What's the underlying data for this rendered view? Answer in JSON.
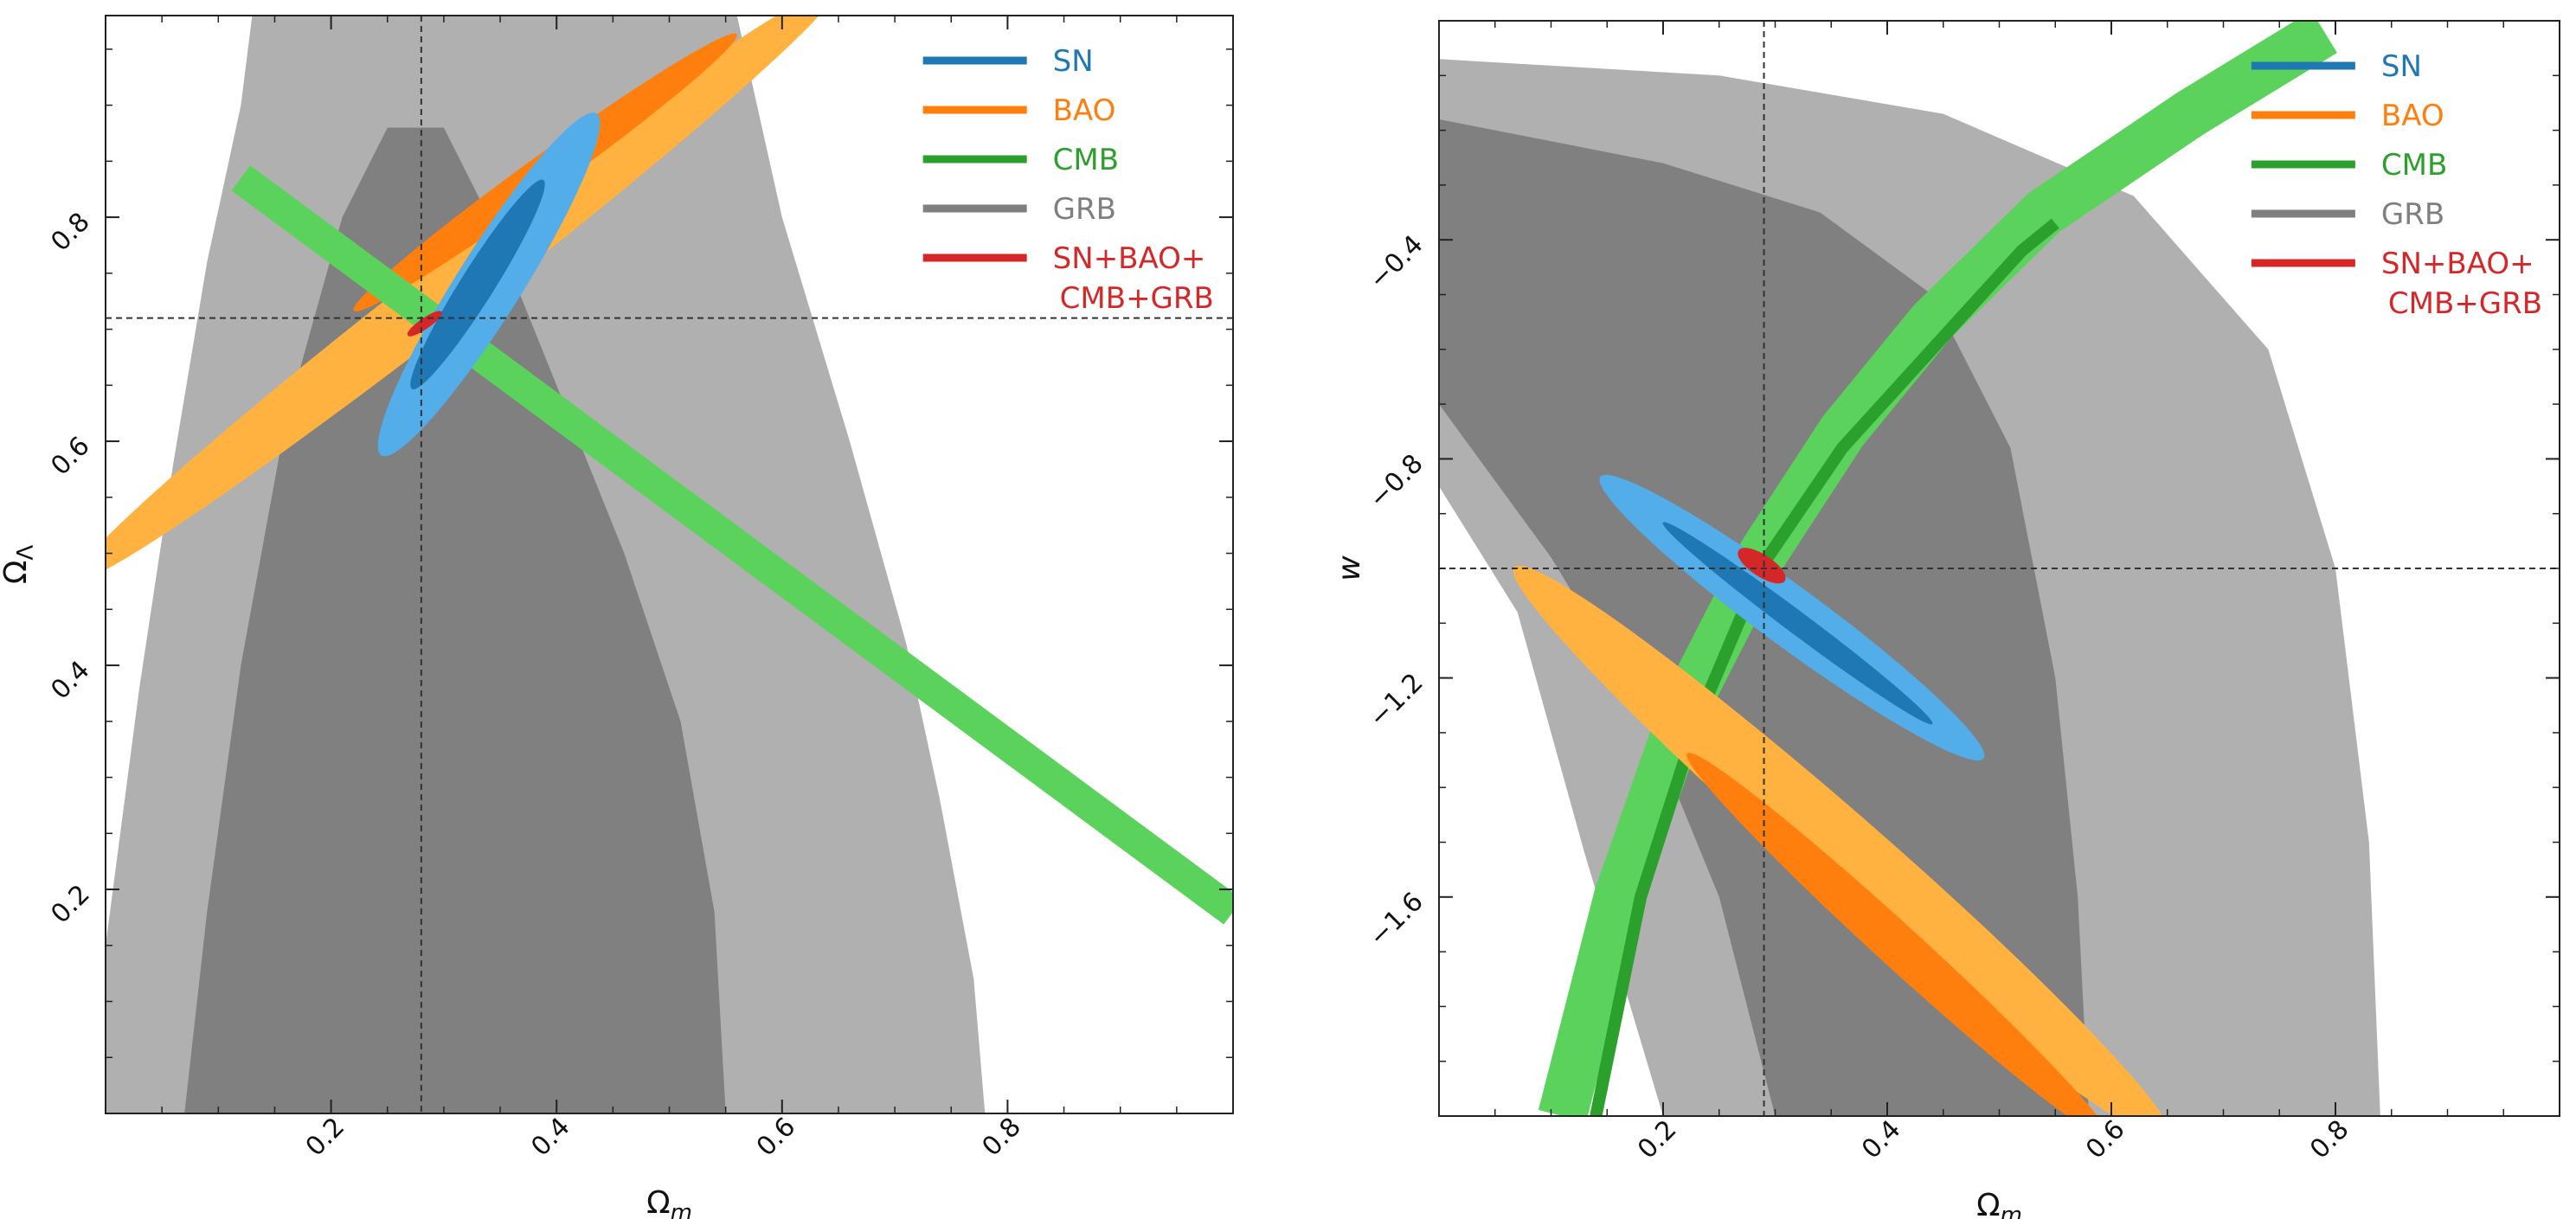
{
  "figure_title": "",
  "chart_data": [
    {
      "type": "contour",
      "xlabel": "Ω",
      "xlabel_sub": "m",
      "ylabel": "Ω",
      "ylabel_sub": "Λ",
      "xlim": [
        0.0,
        1.0
      ],
      "ylim": [
        0.0,
        0.98
      ],
      "xticks": [
        0.2,
        0.4,
        0.6,
        0.8
      ],
      "xtick_labels": [
        "0.2",
        "0.4",
        "0.6",
        "0.8"
      ],
      "yticks": [
        0.2,
        0.4,
        0.6,
        0.8
      ],
      "ytick_labels": [
        "0.2",
        "0.4",
        "0.6",
        "0.8"
      ],
      "fiducial": {
        "x": 0.28,
        "y": 0.71
      },
      "legend": [
        {
          "label": "SN",
          "color": "#1f77b4"
        },
        {
          "label": "BAO",
          "color": "#ff7f0e"
        },
        {
          "label": "CMB",
          "color": "#2ca02c"
        },
        {
          "label": "GRB",
          "color": "#7f7f7f"
        },
        {
          "label": "SN+BAO+",
          "label2": "CMB+GRB",
          "color": "#d62728"
        }
      ],
      "contours": [
        {
          "probe": "GRB",
          "level": "2sigma",
          "color": "#b0b0b0",
          "points": [
            [
              0.0,
              0.15
            ],
            [
              0.03,
              0.38
            ],
            [
              0.06,
              0.58
            ],
            [
              0.09,
              0.76
            ],
            [
              0.12,
              0.9
            ],
            [
              0.13,
              0.98
            ],
            [
              0.56,
              0.98
            ],
            [
              0.6,
              0.8
            ],
            [
              0.66,
              0.6
            ],
            [
              0.71,
              0.42
            ],
            [
              0.74,
              0.28
            ],
            [
              0.77,
              0.12
            ],
            [
              0.78,
              0.0
            ],
            [
              0.0,
              0.0
            ]
          ]
        },
        {
          "probe": "GRB",
          "level": "1sigma",
          "color": "#808080",
          "points": [
            [
              0.07,
              0.0
            ],
            [
              0.09,
              0.18
            ],
            [
              0.12,
              0.4
            ],
            [
              0.16,
              0.62
            ],
            [
              0.21,
              0.8
            ],
            [
              0.25,
              0.88
            ],
            [
              0.3,
              0.88
            ],
            [
              0.34,
              0.8
            ],
            [
              0.4,
              0.65
            ],
            [
              0.46,
              0.5
            ],
            [
              0.51,
              0.35
            ],
            [
              0.54,
              0.18
            ],
            [
              0.55,
              0.0
            ]
          ]
        },
        {
          "probe": "BAO",
          "level": "2sigma",
          "ellipse": {
            "cx": 0.31,
            "cy": 0.74,
            "major": 0.86,
            "minor": 0.055,
            "angle_deg": 38
          },
          "color": "#ffb240"
        },
        {
          "probe": "BAO",
          "level": "1sigma",
          "ellipse": {
            "cx": 0.39,
            "cy": 0.84,
            "major": 0.42,
            "minor": 0.032,
            "angle_deg": 36
          },
          "color": "#ff7f0e"
        },
        {
          "probe": "CMB",
          "level": "2sigma",
          "band": {
            "x0": 0.12,
            "y0": 0.835,
            "x1": 1.0,
            "y1": 0.18,
            "width": 0.028
          },
          "color": "#5bd25b"
        },
        {
          "probe": "SN",
          "level": "2sigma",
          "ellipse": {
            "cx": 0.34,
            "cy": 0.74,
            "major": 0.36,
            "minor": 0.058,
            "angle_deg": 58
          },
          "color": "#53ade8"
        },
        {
          "probe": "SN",
          "level": "1sigma",
          "ellipse": {
            "cx": 0.33,
            "cy": 0.74,
            "major": 0.22,
            "minor": 0.03,
            "angle_deg": 58
          },
          "color": "#1f77b4"
        },
        {
          "probe": "SN+BAO+CMB+GRB",
          "level": "combined",
          "ellipse": {
            "cx": 0.283,
            "cy": 0.705,
            "major": 0.035,
            "minor": 0.008,
            "angle_deg": 35
          },
          "color": "#d62728"
        }
      ]
    },
    {
      "type": "contour",
      "xlabel": "Ω",
      "xlabel_sub": "m",
      "ylabel": "w",
      "xlim": [
        0.0,
        1.0
      ],
      "ylim": [
        -2.0,
        0.0
      ],
      "xticks": [
        0.2,
        0.4,
        0.6,
        0.8
      ],
      "xtick_labels": [
        "0.2",
        "0.4",
        "0.6",
        "0.8"
      ],
      "yticks": [
        -1.6,
        -1.2,
        -0.8,
        -0.4
      ],
      "ytick_labels": [
        "−1.6",
        "−1.2",
        "−0.8",
        "−0.4"
      ],
      "fiducial": {
        "x": 0.29,
        "y": -1.0
      },
      "legend": [
        {
          "label": "SN",
          "color": "#1f77b4"
        },
        {
          "label": "BAO",
          "color": "#ff7f0e"
        },
        {
          "label": "CMB",
          "color": "#2ca02c"
        },
        {
          "label": "GRB",
          "color": "#7f7f7f"
        },
        {
          "label": "SN+BAO+",
          "label2": "CMB+GRB",
          "color": "#d62728"
        }
      ],
      "contours": [
        {
          "probe": "GRB",
          "level": "2sigma",
          "color": "#b0b0b0",
          "points": [
            [
              0.0,
              -0.07
            ],
            [
              0.25,
              -0.1
            ],
            [
              0.45,
              -0.17
            ],
            [
              0.62,
              -0.32
            ],
            [
              0.74,
              -0.6
            ],
            [
              0.8,
              -1.0
            ],
            [
              0.83,
              -1.5
            ],
            [
              0.84,
              -2.0
            ],
            [
              0.2,
              -2.0
            ],
            [
              0.13,
              -1.52
            ],
            [
              0.07,
              -1.08
            ],
            [
              0.0,
              -0.85
            ]
          ]
        },
        {
          "probe": "GRB",
          "level": "1sigma",
          "color": "#808080",
          "points": [
            [
              0.0,
              -0.18
            ],
            [
              0.2,
              -0.26
            ],
            [
              0.34,
              -0.35
            ],
            [
              0.44,
              -0.5
            ],
            [
              0.51,
              -0.78
            ],
            [
              0.55,
              -1.2
            ],
            [
              0.57,
              -1.6
            ],
            [
              0.58,
              -2.0
            ],
            [
              0.3,
              -2.0
            ],
            [
              0.25,
              -1.6
            ],
            [
              0.18,
              -1.25
            ],
            [
              0.1,
              -0.98
            ],
            [
              0.0,
              -0.7
            ]
          ]
        },
        {
          "probe": "CMB",
          "level": "2sigma",
          "path": [
            [
              0.11,
              -2.0
            ],
            [
              0.16,
              -1.6
            ],
            [
              0.22,
              -1.25
            ],
            [
              0.29,
              -0.97
            ],
            [
              0.36,
              -0.75
            ],
            [
              0.44,
              -0.55
            ],
            [
              0.54,
              -0.35
            ],
            [
              0.67,
              -0.17
            ],
            [
              0.79,
              -0.02
            ]
          ],
          "half_width": 0.022,
          "color": "#5bd25b"
        },
        {
          "probe": "CMB",
          "level": "1sigma",
          "path": [
            [
              0.14,
              -2.0
            ],
            [
              0.18,
              -1.6
            ],
            [
              0.23,
              -1.28
            ],
            [
              0.29,
              -0.99
            ],
            [
              0.36,
              -0.78
            ],
            [
              0.44,
              -0.6
            ],
            [
              0.52,
              -0.42
            ],
            [
              0.55,
              -0.37
            ]
          ],
          "half_width": 0.0055,
          "color": "#2ca02c"
        },
        {
          "probe": "BAO",
          "level": "2sigma",
          "ellipse": {
            "cx": 0.36,
            "cy": -1.52,
            "major": 1.2,
            "minor": 0.095,
            "angle_deg": -61
          },
          "color": "#ffb240"
        },
        {
          "probe": "BAO",
          "level": "1sigma",
          "ellipse": {
            "cx": 0.41,
            "cy": -1.69,
            "major": 0.8,
            "minor": 0.05,
            "angle_deg": -62
          },
          "color": "#ff7f0e"
        },
        {
          "probe": "SN",
          "level": "2sigma",
          "ellipse": {
            "cx": 0.315,
            "cy": -1.09,
            "major": 0.62,
            "minor": 0.075,
            "angle_deg": -57
          },
          "color": "#53ade8"
        },
        {
          "probe": "SN",
          "level": "1sigma",
          "ellipse": {
            "cx": 0.32,
            "cy": -1.1,
            "major": 0.44,
            "minor": 0.028,
            "angle_deg": -57
          },
          "color": "#1f77b4"
        },
        {
          "probe": "SN+BAO+CMB+GRB",
          "level": "combined",
          "ellipse": {
            "cx": 0.288,
            "cy": -0.995,
            "major": 0.07,
            "minor": 0.025,
            "angle_deg": -60
          },
          "color": "#d62728"
        }
      ]
    }
  ]
}
